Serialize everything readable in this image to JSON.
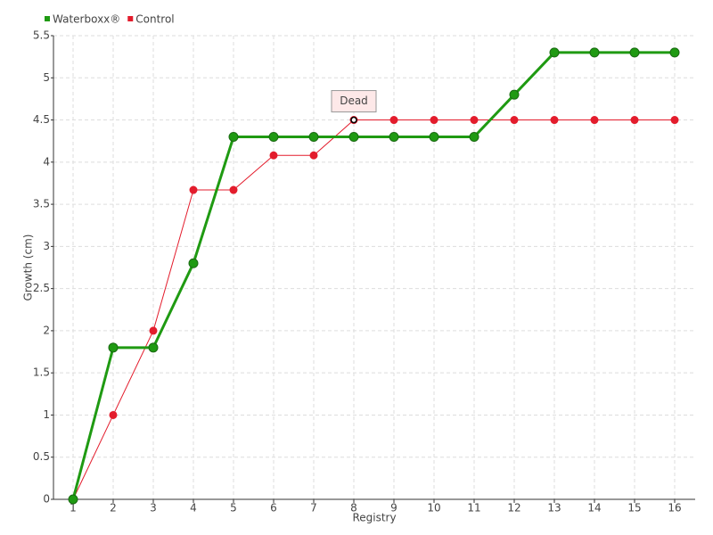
{
  "chart_data": {
    "type": "line",
    "y_label": "Growth (cm)",
    "x_label": "Registry",
    "categories": [
      1,
      2,
      3,
      4,
      5,
      6,
      7,
      8,
      9,
      10,
      11,
      12,
      13,
      14,
      15,
      16
    ],
    "series": [
      {
        "name": "Waterboxx®",
        "color": "#1f9a12",
        "values": [
          0,
          1.8,
          1.8,
          2.8,
          4.3,
          4.3,
          4.3,
          4.3,
          4.3,
          4.3,
          4.3,
          4.8,
          5.3,
          5.3,
          5.3,
          5.3
        ]
      },
      {
        "name": "Control",
        "color": "#e31c2c",
        "values": [
          0,
          1,
          2,
          3.67,
          3.67,
          4.08,
          4.08,
          4.5,
          4.5,
          4.5,
          4.5,
          4.5,
          4.5,
          4.5,
          4.5,
          4.5
        ]
      }
    ],
    "annotation": {
      "text": "Dead",
      "x": 8,
      "y": 4.5
    },
    "ylim": [
      0,
      5.5
    ],
    "yticks": [
      0,
      0.5,
      1,
      1.5,
      2,
      2.5,
      3,
      3.5,
      4,
      4.5,
      5,
      5.5
    ],
    "grid": true,
    "legend": "top-left"
  }
}
